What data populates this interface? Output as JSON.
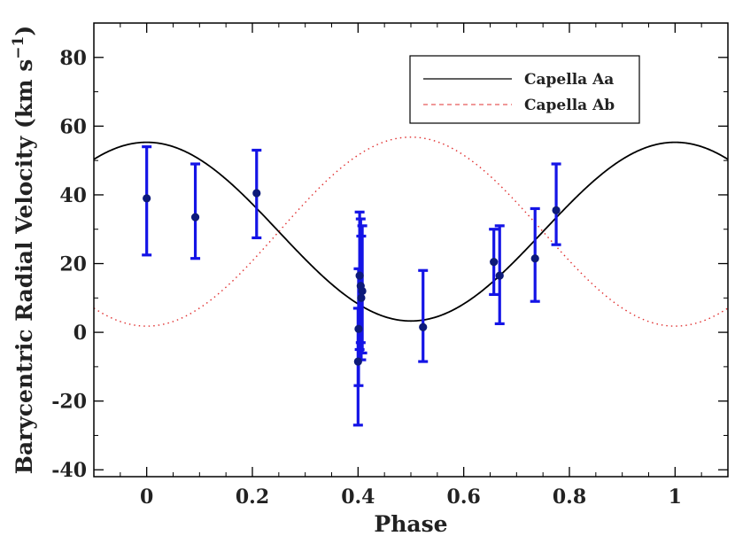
{
  "chart_data": {
    "type": "scatter",
    "xlabel": "Phase",
    "ylabel_main": "Barycentric Radial Velocity (km s",
    "ylabel_sup": "−1",
    "ylabel_close": ")",
    "xlim": [
      -0.1,
      1.1
    ],
    "ylim": [
      -42,
      90
    ],
    "xticks": [
      0,
      0.2,
      0.4,
      0.6,
      0.8,
      1
    ],
    "xtick_labels": [
      "0",
      "0.2",
      "0.4",
      "0.6",
      "0.8",
      "1"
    ],
    "yticks": [
      -40,
      -20,
      0,
      20,
      40,
      60,
      80
    ],
    "ytick_labels": [
      "-40",
      "-20",
      "0",
      "20",
      "40",
      "60",
      "80"
    ],
    "legend": {
      "position": "top-right",
      "entries": [
        "Capella Aa",
        "Capella Ab"
      ]
    },
    "curves": [
      {
        "name": "Capella Aa",
        "style": "solid",
        "color": "#000000",
        "gamma": 29.3,
        "amplitude": 26.0,
        "phase_of_max": 0.0
      },
      {
        "name": "Capella Ab",
        "style": "dotted",
        "color": "#e03030",
        "gamma": 29.3,
        "amplitude": 27.5,
        "phase_of_max": 0.5
      }
    ],
    "points": {
      "color": "#0d1a7a",
      "errorbar_color": "#1414e6",
      "data": [
        {
          "x": 0.0,
          "y": 39.0,
          "lo": 22.5,
          "hi": 54.0
        },
        {
          "x": 0.092,
          "y": 33.5,
          "lo": 21.5,
          "hi": 49.0
        },
        {
          "x": 0.208,
          "y": 40.5,
          "lo": 27.5,
          "hi": 53.0
        },
        {
          "x": 0.4,
          "y": -8.5,
          "lo": -27.0,
          "hi": 7.0
        },
        {
          "x": 0.401,
          "y": 1.0,
          "lo": -15.5,
          "hi": 18.5
        },
        {
          "x": 0.403,
          "y": 16.5,
          "lo": -5.0,
          "hi": 35.0
        },
        {
          "x": 0.405,
          "y": 13.5,
          "lo": -3.0,
          "hi": 33.0
        },
        {
          "x": 0.406,
          "y": 10.0,
          "lo": -8.0,
          "hi": 28.0
        },
        {
          "x": 0.408,
          "y": 12.0,
          "lo": -6.0,
          "hi": 31.0
        },
        {
          "x": 0.523,
          "y": 1.5,
          "lo": -8.5,
          "hi": 18.0
        },
        {
          "x": 0.657,
          "y": 20.5,
          "lo": 11.0,
          "hi": 30.0
        },
        {
          "x": 0.668,
          "y": 16.5,
          "lo": 2.5,
          "hi": 31.0
        },
        {
          "x": 0.735,
          "y": 21.5,
          "lo": 9.0,
          "hi": 36.0
        },
        {
          "x": 0.775,
          "y": 35.5,
          "lo": 25.5,
          "hi": 49.0
        }
      ]
    }
  }
}
